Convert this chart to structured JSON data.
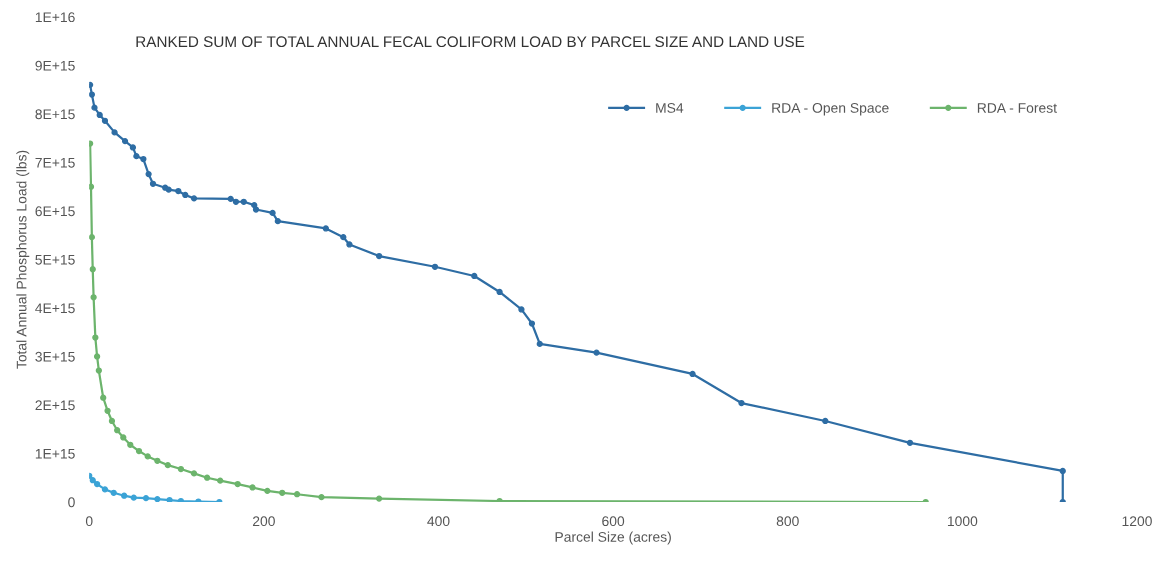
{
  "chart_data": {
    "type": "line",
    "title": "RANKED SUM OF TOTAL ANNUAL FECAL COLIFORM LOAD BY PARCEL SIZE AND LAND USE",
    "xlabel": "Parcel Size (acres)",
    "ylabel": "Total Annual Phosphorus Load (lbs)",
    "series": [
      {
        "name": "MS4",
        "color": "#2e6da4",
        "x": [
          1,
          3,
          6,
          12,
          18,
          29,
          41,
          50,
          54,
          62,
          68,
          73,
          87,
          91,
          102,
          110,
          120,
          162,
          168,
          177,
          189,
          191,
          210,
          216,
          271,
          291,
          298,
          332,
          396,
          441,
          470,
          495,
          507,
          516,
          581,
          691,
          747,
          843,
          940,
          1115,
          1115
        ],
        "values": [
          8600000000000000.0,
          8400000000000000.0,
          8130000000000000.0,
          7980000000000000.0,
          7860000000000000.0,
          7620000000000000.0,
          7440000000000000.0,
          7310000000000000.0,
          7130000000000000.0,
          7070000000000000.0,
          6760000000000000.0,
          6560000000000000.0,
          6480000000000000.0,
          6440000000000000.0,
          6410000000000000.0,
          6330000000000000.0,
          6260000000000000.0,
          6250000000000000.0,
          6190000000000000.0,
          6190000000000000.0,
          6120000000000000.0,
          6030000000000000.0,
          5960000000000000.0,
          5790000000000000.0,
          5640000000000000.0,
          5460000000000000.0,
          5310000000000000.0,
          5070000000000000.0,
          4850000000000000.0,
          4660000000000000.0,
          4330000000000000.0,
          3970000000000000.0,
          3680000000000000.0,
          3260000000000000.0,
          3080000000000000.0,
          2640000000000000.0,
          2040000000000000.0,
          1670000000000000.0,
          1220000000000000.0,
          640000000000000.0,
          0
        ]
      },
      {
        "name": "RDA - Open Space",
        "color": "#3ba3d6",
        "x": [
          0,
          4,
          9,
          18,
          28,
          40,
          51,
          65,
          78,
          92,
          105,
          125,
          149
        ],
        "values": [
          540000000000000.0,
          450000000000000.0,
          370000000000000.0,
          260000000000000.0,
          190000000000000.0,
          130000000000000.0,
          90000000000000.0,
          80000000000000.0,
          60000000000000.0,
          40000000000000.0,
          20000000000000.0,
          10000000000000.0,
          0
        ]
      },
      {
        "name": "RDA - Forest",
        "color": "#6cb46c",
        "x": [
          1,
          2,
          3,
          4,
          5,
          7,
          9,
          11,
          16,
          21,
          26,
          32,
          39,
          47,
          57,
          67,
          78,
          90,
          105,
          120,
          135,
          150,
          170,
          187,
          204,
          221,
          238,
          266,
          332,
          470,
          958
        ],
        "values": [
          7390000000000000.0,
          6500000000000000.0,
          5460000000000000.0,
          4800000000000000.0,
          4220000000000000.0,
          3390000000000000.0,
          3000000000000000.0,
          2710000000000000.0,
          2150000000000000.0,
          1880000000000000.0,
          1670000000000000.0,
          1480000000000000.0,
          1330000000000000.0,
          1180000000000000.0,
          1050000000000000.0,
          940000000000000.0,
          850000000000000.0,
          760000000000000.0,
          680000000000000.0,
          590000000000000.0,
          500000000000000.0,
          440000000000000.0,
          370000000000000.0,
          300000000000000.0,
          230000000000000.0,
          190000000000000.0,
          160000000000000.0,
          100000000000000.0,
          70000000000000.0,
          20000000000000.0,
          0
        ]
      }
    ],
    "xlim": [
      0,
      1200
    ],
    "xticks": [
      0,
      200,
      400,
      600,
      800,
      1000,
      1200
    ],
    "ylim": [
      0,
      1e+16
    ],
    "yticks": [
      0,
      {
        "value": 1000000000000000.0,
        "label": "1E+15"
      },
      {
        "value": 2000000000000000.0,
        "label": "2E+15"
      },
      {
        "value": 3000000000000000.0,
        "label": "3E+15"
      },
      {
        "value": 4000000000000000.0,
        "label": "4E+15"
      },
      {
        "value": 5000000000000000.0,
        "label": "5E+15"
      },
      {
        "value": 6000000000000000.0,
        "label": "6E+15"
      },
      {
        "value": 7000000000000000.0,
        "label": "7E+15"
      },
      {
        "value": 8000000000000000.0,
        "label": "8E+15"
      },
      {
        "value": 9000000000000000.0,
        "label": "9E+15"
      },
      {
        "value": 1e+16,
        "label": "1E+16"
      }
    ],
    "grid": false,
    "legend": "top right",
    "marker": "circle",
    "line_style": "solid"
  }
}
